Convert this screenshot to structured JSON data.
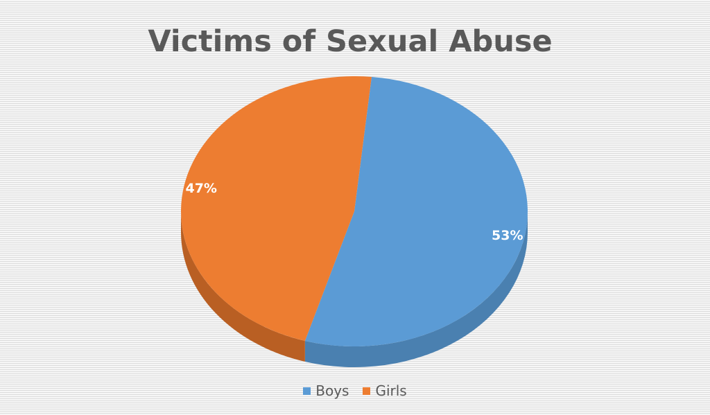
{
  "chart_data": {
    "type": "pie",
    "title": "Victims of Sexual Abuse",
    "categories": [
      "Boys",
      "Girls"
    ],
    "values": [
      53,
      47
    ],
    "labels": [
      "53%",
      "47%"
    ],
    "colors": [
      "#5b9bd5",
      "#ed7d31"
    ],
    "side_colors": [
      "#4a80b0",
      "#b95f23"
    ],
    "legend_position": "bottom",
    "style": "3d"
  }
}
